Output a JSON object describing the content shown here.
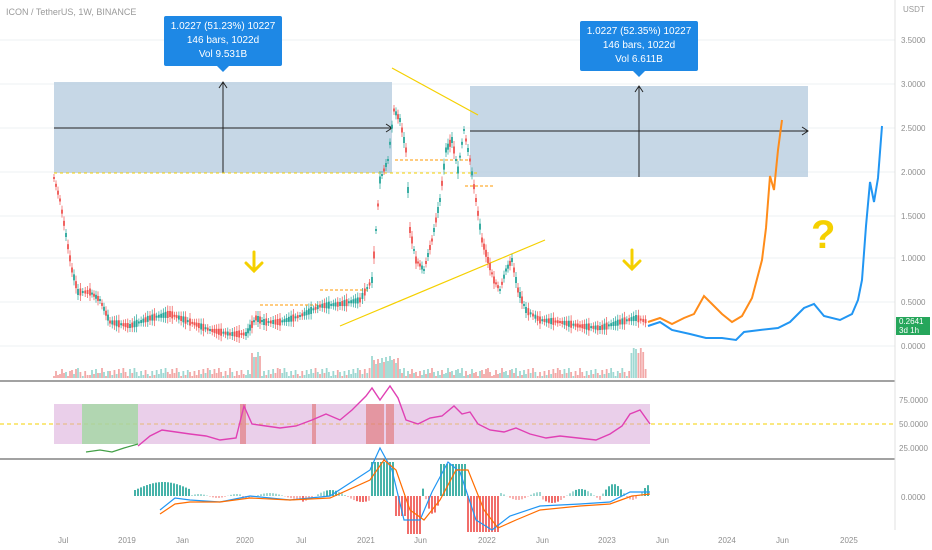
{
  "header": {
    "symbol_line": "ICON / TetherUS, 1W, BINANCE"
  },
  "currency_unit": "USDT",
  "boxes": [
    {
      "line1": "1.0227 (51.23%) 10227",
      "line2": "146 bars, 1022d",
      "line3": "Vol 9.531B"
    },
    {
      "line1": "1.0227 (52.35%) 10227",
      "line2": "146 bars, 1022d",
      "line3": "Vol 6.611B"
    }
  ],
  "price_axis": [
    "3.5000",
    "3.0000",
    "2.5000",
    "2.0000",
    "1.5000",
    "1.0000",
    "0.5000",
    "0.0000"
  ],
  "current_price": {
    "value": "0.2641",
    "countdown": "3d 1h"
  },
  "rsi_axis": [
    "75.0000",
    "50.0000",
    "25.0000"
  ],
  "macd_axis": [
    "0.0000"
  ],
  "time_axis": [
    "Jul",
    "2019",
    "Jan",
    "2020",
    "Jul",
    "2021",
    "Jun",
    "2022",
    "Jun",
    "2023",
    "Jun",
    "2024",
    "Jun",
    "2025"
  ],
  "annotation": {
    "question_mark": "?"
  },
  "colors": {
    "projection_blue": "#2196f3",
    "projection_orange": "#ff8c1a",
    "rsi_line": "#e040b4",
    "arrow_yellow": "#f5d000",
    "box_blue": "#1e88e5",
    "zone_fill": "#b8cde0"
  }
}
